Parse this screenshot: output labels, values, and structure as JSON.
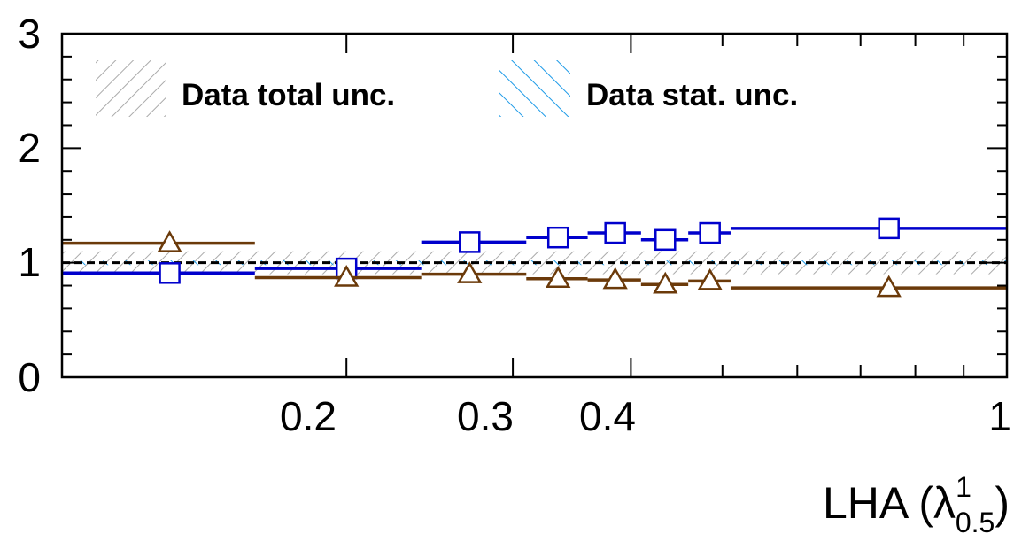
{
  "chart_data": {
    "type": "line",
    "xlabel": {
      "text": "LHA (λ",
      "sup": "1",
      "sub": "0.5",
      "close": ")"
    },
    "ylabel": "",
    "xscale": "log",
    "xlim": [
      0.1,
      1.0
    ],
    "ylim": [
      0,
      3
    ],
    "x_ticks": [
      0.2,
      0.3,
      0.4,
      1
    ],
    "x_tick_labels": [
      "0.2",
      "0.3",
      "0.4",
      "1"
    ],
    "y_ticks": [
      0,
      1,
      2,
      3
    ],
    "y_tick_labels": [
      "0",
      "1",
      "2",
      "3"
    ],
    "bins": [
      [
        0.1,
        0.16
      ],
      [
        0.16,
        0.24
      ],
      [
        0.24,
        0.31
      ],
      [
        0.31,
        0.36
      ],
      [
        0.36,
        0.41
      ],
      [
        0.41,
        0.46
      ],
      [
        0.46,
        0.51
      ],
      [
        0.51,
        1.0
      ]
    ],
    "bin_centers": [
      0.13,
      0.2,
      0.27,
      0.335,
      0.385,
      0.435,
      0.485,
      0.75
    ],
    "series": [
      {
        "name": "",
        "marker": "open-square",
        "color": "#0000cc",
        "values": [
          0.91,
          0.95,
          1.18,
          1.22,
          1.26,
          1.2,
          1.26,
          1.3
        ]
      },
      {
        "name": "",
        "marker": "open-triangle",
        "color": "#6b3a0a",
        "values": [
          1.17,
          0.87,
          0.9,
          0.86,
          0.85,
          0.81,
          0.84,
          0.78
        ]
      }
    ],
    "reference_line": 1.0,
    "bands": {
      "total_unc": {
        "lower": 0.9,
        "upper": 1.1
      },
      "stat_unc": {
        "lower": 0.98,
        "upper": 1.02
      }
    },
    "legend": {
      "placement": "top",
      "entries": [
        {
          "label": "Data total unc.",
          "style": "grey-hatch",
          "color": "#aaaaaa"
        },
        {
          "label": "Data stat. unc.",
          "style": "blue-hatch",
          "color": "#1e9be8"
        }
      ]
    },
    "grid": false
  }
}
